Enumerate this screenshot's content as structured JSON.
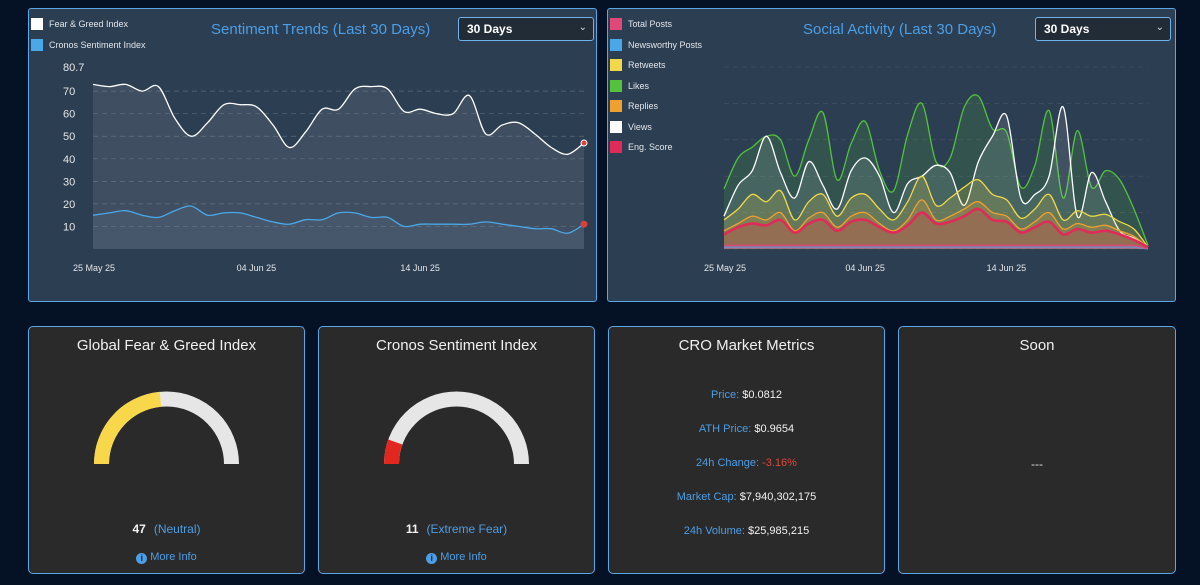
{
  "sentiment_chart": {
    "title": "Sentiment Trends (Last 30 Days)",
    "range_select": "30 Days",
    "legend": [
      {
        "name": "Fear & Greed Index",
        "color": "#ffffff"
      },
      {
        "name": "Cronos Sentiment Index",
        "color": "#4aa8e8"
      }
    ]
  },
  "social_chart": {
    "title": "Social Activity (Last 30 Days)",
    "range_select": "30 Days",
    "legend": [
      {
        "name": "Total Posts",
        "color": "#e0487a"
      },
      {
        "name": "Newsworthy Posts",
        "color": "#4aa8e8"
      },
      {
        "name": "Retweets",
        "color": "#f0d84a"
      },
      {
        "name": "Likes",
        "color": "#54c23c"
      },
      {
        "name": "Replies",
        "color": "#f0a030"
      },
      {
        "name": "Views",
        "color": "#ffffff"
      },
      {
        "name": "Eng. Score",
        "color": "#e02a5a"
      }
    ]
  },
  "chart_data": [
    {
      "type": "line",
      "title": "Sentiment Trends (Last 30 Days)",
      "x_ticks": [
        "25 May 25",
        "04 Jun 25",
        "14 Jun 25"
      ],
      "y_ticks": [
        "80.7",
        "70",
        "60",
        "50",
        "40",
        "30",
        "20",
        "10"
      ],
      "ylim": [
        0,
        80.7
      ],
      "series": [
        {
          "name": "Fear & Greed Index",
          "color": "#ffffff",
          "values": [
            73,
            72,
            73,
            70,
            72,
            58,
            50,
            56,
            64,
            64,
            63,
            55,
            45,
            52,
            62,
            62,
            71,
            72,
            71,
            61,
            62,
            60,
            60,
            68,
            51,
            55,
            56,
            51,
            45,
            42,
            47
          ]
        },
        {
          "name": "Cronos Sentiment Index",
          "color": "#4aa8e8",
          "values": [
            15,
            16,
            17,
            15,
            14,
            17,
            19,
            15,
            16,
            16,
            14,
            12,
            11,
            13,
            13,
            16,
            16,
            14,
            14,
            10,
            11,
            11,
            11,
            11,
            12,
            11,
            10,
            9,
            9,
            7,
            11
          ]
        }
      ]
    },
    {
      "type": "area",
      "title": "Social Activity (Last 30 Days)",
      "x_ticks": [
        "25 May 25",
        "04 Jun 25",
        "14 Jun 25"
      ],
      "ylim": [
        0,
        100
      ],
      "series": [
        {
          "name": "Likes",
          "color": "#54c23c",
          "values": [
            33,
            50,
            56,
            62,
            60,
            40,
            60,
            75,
            38,
            58,
            70,
            43,
            32,
            63,
            80,
            48,
            50,
            78,
            84,
            66,
            64,
            34,
            46,
            76,
            28,
            65,
            34,
            43,
            38,
            22,
            2
          ]
        },
        {
          "name": "Views",
          "color": "#ffffff",
          "values": [
            18,
            35,
            43,
            62,
            42,
            28,
            48,
            35,
            22,
            43,
            50,
            40,
            20,
            36,
            40,
            46,
            42,
            24,
            48,
            62,
            73,
            28,
            30,
            40,
            78,
            18,
            42,
            26,
            10,
            6,
            1
          ]
        },
        {
          "name": "Retweets",
          "color": "#f0d84a",
          "values": [
            16,
            22,
            30,
            26,
            32,
            16,
            26,
            30,
            18,
            28,
            30,
            22,
            16,
            26,
            40,
            24,
            28,
            34,
            38,
            30,
            27,
            17,
            22,
            30,
            16,
            21,
            18,
            19,
            15,
            11,
            1
          ]
        },
        {
          "name": "Replies",
          "color": "#f0a030",
          "values": [
            10,
            14,
            18,
            16,
            20,
            10,
            17,
            20,
            12,
            18,
            20,
            14,
            10,
            16,
            27,
            16,
            18,
            22,
            26,
            20,
            18,
            11,
            15,
            20,
            11,
            14,
            12,
            13,
            10,
            7,
            1
          ]
        },
        {
          "name": "Eng. Score",
          "color": "#e02a5a",
          "values": [
            8,
            12,
            14,
            13,
            16,
            9,
            14,
            16,
            10,
            15,
            16,
            12,
            9,
            13,
            20,
            14,
            15,
            18,
            22,
            16,
            15,
            9,
            12,
            15,
            8,
            11,
            9,
            10,
            8,
            5,
            1
          ]
        },
        {
          "name": "Newsworthy Posts",
          "color": "#4aa8e8",
          "values": [
            1,
            1,
            1,
            1,
            1,
            1,
            1,
            1,
            1,
            1,
            1,
            1,
            1,
            1,
            1,
            1,
            1,
            1,
            1,
            1,
            1,
            1,
            1,
            1,
            1,
            1,
            1,
            1,
            1,
            1,
            0
          ]
        },
        {
          "name": "Total Posts",
          "color": "#e0487a",
          "values": [
            2,
            2,
            2,
            2,
            2,
            2,
            2,
            2,
            2,
            2,
            2,
            2,
            2,
            2,
            2,
            2,
            2,
            2,
            2,
            2,
            2,
            2,
            2,
            2,
            2,
            2,
            2,
            2,
            2,
            2,
            0
          ]
        }
      ]
    }
  ],
  "gauges": [
    {
      "title": "Global Fear & Greed Index",
      "value": "47",
      "label": "(Neutral)",
      "fraction": 0.47,
      "color": "#f8d84a",
      "more_info": "More Info"
    },
    {
      "title": "Cronos Sentiment Index",
      "value": "11",
      "label": "(Extreme Fear)",
      "fraction": 0.11,
      "color": "#e2281e",
      "more_info": "More Info"
    }
  ],
  "market": {
    "title": "CRO Market Metrics",
    "rows": [
      {
        "label": "Price:",
        "value": "$0.0812"
      },
      {
        "label": "ATH Price:",
        "value": "$0.9654"
      },
      {
        "label": "24h Change:",
        "value": "-3.16%"
      },
      {
        "label": "Market Cap:",
        "value": "$7,940,302,175"
      },
      {
        "label": "24h Volume:",
        "value": "$25,985,215"
      }
    ]
  },
  "soon": {
    "title": "Soon",
    "text": "---"
  },
  "info_icon_glyph": "i"
}
